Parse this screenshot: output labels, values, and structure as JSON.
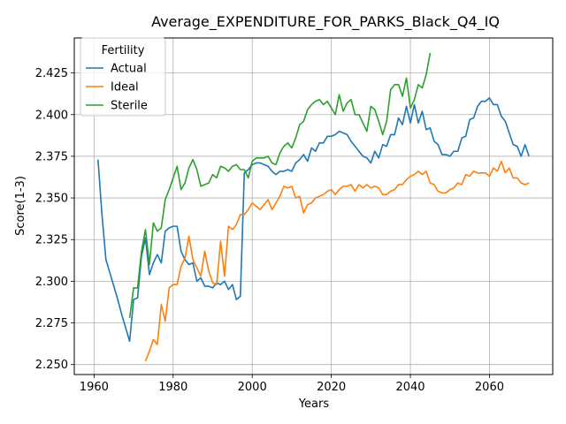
{
  "chart_data": {
    "type": "line",
    "title": "Average_EXPENDITURE_FOR_PARKS_Black_Q4_IQ",
    "xlabel": "Years",
    "ylabel": "Score(1-3)",
    "xlim": [
      1955,
      2076
    ],
    "ylim": [
      2.244,
      2.446
    ],
    "xticks": [
      1960,
      1980,
      2000,
      2020,
      2040,
      2060
    ],
    "xtick_labels": [
      "1960",
      "1980",
      "2000",
      "2020",
      "2040",
      "2060"
    ],
    "yticks": [
      2.25,
      2.275,
      2.3,
      2.325,
      2.35,
      2.375,
      2.4,
      2.425
    ],
    "ytick_labels": [
      "2.250",
      "2.275",
      "2.300",
      "2.325",
      "2.350",
      "2.375",
      "2.400",
      "2.425"
    ],
    "grid": true,
    "legend": {
      "title": "Fertility",
      "placement": "upper-left"
    },
    "series": [
      {
        "name": "Actual",
        "color": "#1f77b4",
        "x": [
          1961,
          1962,
          1963,
          1964,
          1965,
          1966,
          1967,
          1968,
          1969,
          1970,
          1971,
          1972,
          1973,
          1974,
          1975,
          1976,
          1977,
          1978,
          1979,
          1980,
          1981,
          1982,
          1983,
          1984,
          1985,
          1986,
          1987,
          1988,
          1989,
          1990,
          1991,
          1992,
          1993,
          1994,
          1995,
          1996,
          1997,
          1998,
          1999,
          2000,
          2001,
          2002,
          2003,
          2004,
          2005,
          2006,
          2007,
          2008,
          2009,
          2010,
          2011,
          2012,
          2013,
          2014,
          2015,
          2016,
          2017,
          2018,
          2019,
          2020,
          2021,
          2022,
          2023,
          2024,
          2025,
          2026,
          2027,
          2028,
          2029,
          2030,
          2031,
          2032,
          2033,
          2034,
          2035,
          2036,
          2037,
          2038,
          2039,
          2040,
          2041,
          2042,
          2043,
          2044,
          2045,
          2046,
          2047,
          2048,
          2049,
          2050,
          2051,
          2052,
          2053,
          2054,
          2055,
          2056,
          2057,
          2058,
          2059,
          2060,
          2061,
          2062,
          2063,
          2064,
          2065,
          2066,
          2067,
          2068,
          2069,
          2070
        ],
        "values": [
          2.373,
          2.34,
          2.313,
          2.305,
          2.297,
          2.289,
          2.28,
          2.272,
          2.264,
          2.289,
          2.29,
          2.315,
          2.326,
          2.304,
          2.311,
          2.316,
          2.311,
          2.33,
          2.332,
          2.333,
          2.333,
          2.318,
          2.313,
          2.31,
          2.311,
          2.3,
          2.302,
          2.297,
          2.297,
          2.296,
          2.299,
          2.298,
          2.3,
          2.295,
          2.298,
          2.289,
          2.291,
          2.365,
          2.367,
          2.37,
          2.371,
          2.371,
          2.37,
          2.369,
          2.366,
          2.364,
          2.366,
          2.366,
          2.367,
          2.366,
          2.371,
          2.373,
          2.376,
          2.372,
          2.38,
          2.378,
          2.383,
          2.383,
          2.387,
          2.387,
          2.388,
          2.39,
          2.389,
          2.388,
          2.384,
          2.381,
          2.378,
          2.375,
          2.374,
          2.371,
          2.378,
          2.374,
          2.382,
          2.381,
          2.388,
          2.388,
          2.398,
          2.394,
          2.405,
          2.395,
          2.406,
          2.395,
          2.402,
          2.391,
          2.392,
          2.384,
          2.382,
          2.376,
          2.376,
          2.375,
          2.378,
          2.378,
          2.386,
          2.387,
          2.397,
          2.398,
          2.405,
          2.408,
          2.408,
          2.41,
          2.406,
          2.406,
          2.399,
          2.396,
          2.389,
          2.382,
          2.381,
          2.375,
          2.382,
          2.375
        ]
      },
      {
        "name": "Ideal",
        "color": "#ff7f0e",
        "x": [
          1973,
          1974,
          1975,
          1976,
          1977,
          1978,
          1979,
          1980,
          1981,
          1982,
          1983,
          1984,
          1985,
          1986,
          1987,
          1988,
          1989,
          1990,
          1991,
          1992,
          1993,
          1994,
          1995,
          1996,
          1997,
          1998,
          1999,
          2000,
          2001,
          2002,
          2003,
          2004,
          2005,
          2006,
          2007,
          2008,
          2009,
          2010,
          2011,
          2012,
          2013,
          2014,
          2015,
          2016,
          2017,
          2018,
          2019,
          2020,
          2021,
          2022,
          2023,
          2024,
          2025,
          2026,
          2027,
          2028,
          2029,
          2030,
          2031,
          2032,
          2033,
          2034,
          2035,
          2036,
          2037,
          2038,
          2039,
          2040,
          2041,
          2042,
          2043,
          2044,
          2045,
          2046,
          2047,
          2048,
          2049,
          2050,
          2051,
          2052,
          2053,
          2054,
          2055,
          2056,
          2057,
          2058,
          2059,
          2060,
          2061,
          2062,
          2063,
          2064,
          2065,
          2066,
          2067,
          2068,
          2069,
          2070
        ],
        "values": [
          2.252,
          2.258,
          2.265,
          2.262,
          2.286,
          2.276,
          2.296,
          2.298,
          2.298,
          2.309,
          2.314,
          2.327,
          2.313,
          2.308,
          2.303,
          2.318,
          2.306,
          2.299,
          2.298,
          2.324,
          2.303,
          2.333,
          2.331,
          2.334,
          2.34,
          2.34,
          2.343,
          2.347,
          2.345,
          2.343,
          2.346,
          2.349,
          2.343,
          2.347,
          2.351,
          2.357,
          2.356,
          2.357,
          2.35,
          2.351,
          2.341,
          2.346,
          2.347,
          2.35,
          2.351,
          2.352,
          2.354,
          2.355,
          2.352,
          2.355,
          2.357,
          2.357,
          2.358,
          2.354,
          2.358,
          2.356,
          2.358,
          2.356,
          2.357,
          2.356,
          2.352,
          2.352,
          2.354,
          2.355,
          2.358,
          2.358,
          2.361,
          2.363,
          2.364,
          2.366,
          2.364,
          2.366,
          2.359,
          2.358,
          2.354,
          2.353,
          2.353,
          2.355,
          2.356,
          2.359,
          2.358,
          2.364,
          2.363,
          2.366,
          2.365,
          2.365,
          2.365,
          2.363,
          2.368,
          2.366,
          2.372,
          2.365,
          2.368,
          2.362,
          2.362,
          2.359,
          2.358,
          2.359
        ]
      },
      {
        "name": "Sterile",
        "color": "#2ca02c",
        "x": [
          1969,
          1970,
          1971,
          1972,
          1973,
          1974,
          1975,
          1976,
          1977,
          1978,
          1979,
          1980,
          1981,
          1982,
          1983,
          1984,
          1985,
          1986,
          1987,
          1988,
          1989,
          1990,
          1991,
          1992,
          1993,
          1994,
          1995,
          1996,
          1997,
          1998,
          1999,
          2000,
          2001,
          2002,
          2003,
          2004,
          2005,
          2006,
          2007,
          2008,
          2009,
          2010,
          2011,
          2012,
          2013,
          2014,
          2015,
          2016,
          2017,
          2018,
          2019,
          2020,
          2021,
          2022,
          2023,
          2024,
          2025,
          2026,
          2027,
          2028,
          2029,
          2030,
          2031,
          2032,
          2033,
          2034,
          2035,
          2036,
          2037,
          2038,
          2039,
          2040,
          2041,
          2042,
          2043,
          2044,
          2045
        ],
        "values": [
          2.278,
          2.296,
          2.296,
          2.318,
          2.331,
          2.31,
          2.335,
          2.33,
          2.332,
          2.349,
          2.355,
          2.362,
          2.369,
          2.355,
          2.359,
          2.368,
          2.373,
          2.367,
          2.357,
          2.358,
          2.359,
          2.364,
          2.362,
          2.369,
          2.368,
          2.366,
          2.369,
          2.37,
          2.367,
          2.367,
          2.362,
          2.372,
          2.374,
          2.374,
          2.374,
          2.375,
          2.371,
          2.37,
          2.377,
          2.381,
          2.383,
          2.38,
          2.386,
          2.394,
          2.396,
          2.403,
          2.406,
          2.408,
          2.409,
          2.406,
          2.408,
          2.404,
          2.4,
          2.412,
          2.402,
          2.407,
          2.409,
          2.4,
          2.4,
          2.395,
          2.39,
          2.405,
          2.403,
          2.396,
          2.388,
          2.396,
          2.415,
          2.418,
          2.418,
          2.411,
          2.422,
          2.404,
          2.409,
          2.418,
          2.416,
          2.424,
          2.437
        ]
      }
    ]
  }
}
